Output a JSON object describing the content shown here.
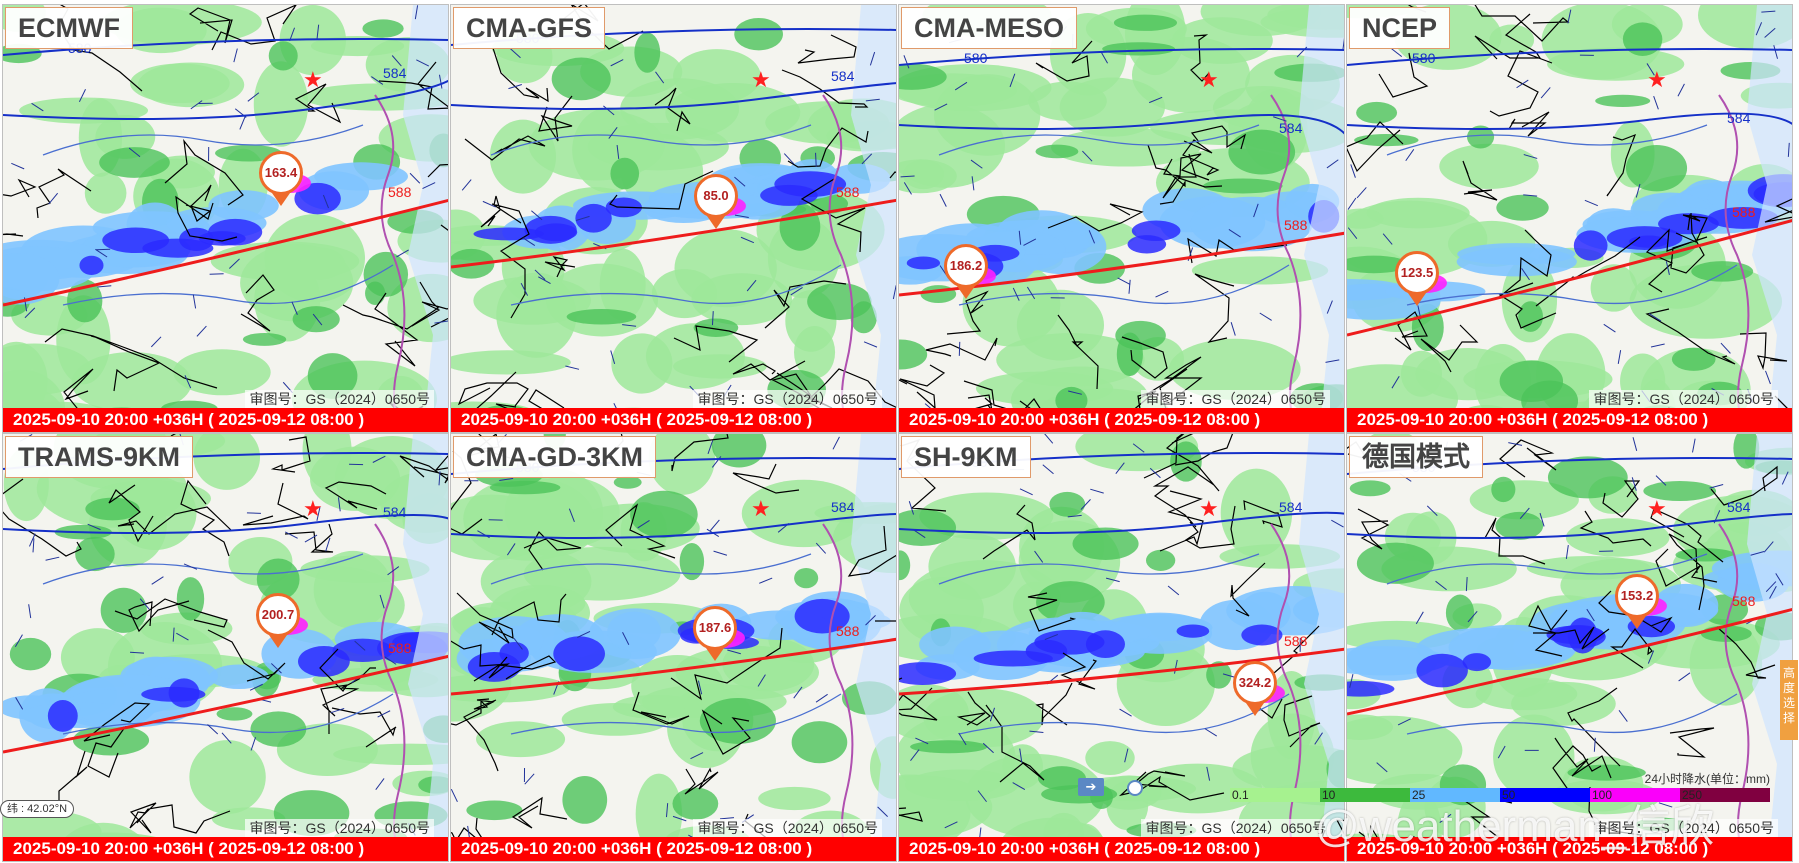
{
  "panels": [
    {
      "name": "ECMWF",
      "max": "163.4",
      "approval": "审图号：GS（2024）0650号",
      "time": "2025-09-10 20:00 +036H ( 2025-09-12 08:00 )"
    },
    {
      "name": "CMA-GFS",
      "max": "85.0",
      "approval": "审图号：GS（2024）0650号",
      "time": "2025-09-10 20:00 +036H ( 2025-09-12 08:00 )"
    },
    {
      "name": "CMA-MESO",
      "max": "186.2",
      "approval": "审图号：GS（2024）0650号",
      "time": "2025-09-10 20:00 +036H ( 2025-09-12 08:00 )"
    },
    {
      "name": "NCEP",
      "max": "123.5",
      "approval": "审图号：GS（2024）0650号",
      "time": "2025-09-10 20:00 +036H ( 2025-09-12 08:00 )"
    },
    {
      "name": "TRAMS-9KM",
      "max": "200.7",
      "approval": "审图号：GS（2024）0650号",
      "time": "2025-09-10 20:00 +036H ( 2025-09-12 08:00 )"
    },
    {
      "name": "CMA-GD-3KM",
      "max": "187.6",
      "approval": "审图号：GS（2024）0650号",
      "time": "2025-09-10 20:00 +036H ( 2025-09-12 08:00 )"
    },
    {
      "name": "SH-9KM",
      "max": "324.2",
      "approval": "审图号：GS（2024）0650号",
      "time": "2025-09-10 20:00 +036H ( 2025-09-12 08:00 )"
    },
    {
      "name": "德国模式",
      "max": "153.2",
      "approval": "审图号：GS（2024）0650号",
      "time": "2025-09-10 20:00 +036H ( 2025-09-12 08:00 )"
    }
  ],
  "contours": {
    "blue": [
      "580",
      "584"
    ],
    "red": "588"
  },
  "coords": "纬 : 42.02°N",
  "side_tab": "高度选择",
  "legend": {
    "title": "24小时降水(单位：mm)",
    "values": [
      "0.1",
      "10",
      "25",
      "50",
      "100",
      "250"
    ],
    "colors": [
      "#a6f28f",
      "#3dba3d",
      "#61b8ff",
      "#0000ff",
      "#fa00fa",
      "#800040"
    ]
  },
  "watermark": "@weatherman_信欣",
  "colors": {
    "title_border": "#e09a6a",
    "time_bar": "#ff0000",
    "marker": "#ee6a2a",
    "contour_588": "#ee1c1c",
    "contour_584": "#1530c8",
    "boundary": "#000000",
    "coast": "#b050b0"
  }
}
